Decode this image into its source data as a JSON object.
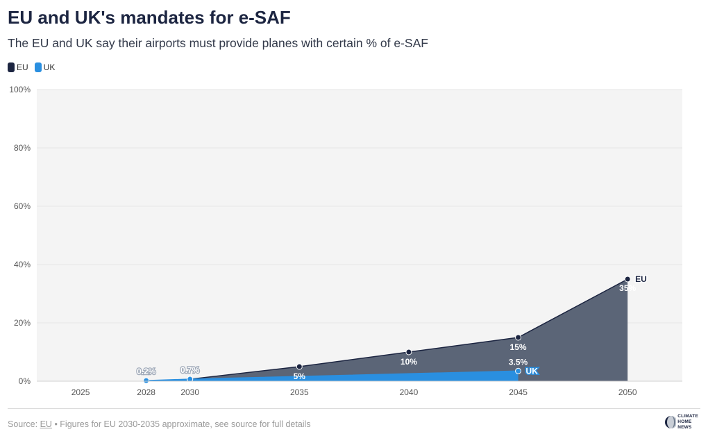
{
  "title": "EU and UK's mandates for e-SAF",
  "subtitle": "The EU and UK say their airports must provide planes with certain % of e-SAF",
  "legend": [
    {
      "label": "EU",
      "color": "#1c2541"
    },
    {
      "label": "UK",
      "color": "#2a8fe0"
    }
  ],
  "chart_data": {
    "type": "area",
    "title": "EU and UK's mandates for e-SAF",
    "x_ticks": [
      2025,
      2028,
      2030,
      2035,
      2040,
      2045,
      2050
    ],
    "xlim": [
      2023,
      2052.5
    ],
    "y_ticks": [
      "0%",
      "20%",
      "40%",
      "60%",
      "80%",
      "100%"
    ],
    "ylim": [
      0,
      100
    ],
    "grid": true,
    "series": [
      {
        "name": "EU",
        "color": "#1c2541",
        "fill": "#5b6577",
        "x": [
          2030,
          2035,
          2040,
          2045,
          2050
        ],
        "y": [
          0.7,
          5,
          10,
          15,
          35
        ],
        "labels": [
          "0.7%",
          "5%",
          "10%",
          "15%",
          "35%"
        ]
      },
      {
        "name": "UK",
        "color": "#2a8fe0",
        "fill": "#2a8fe0",
        "x": [
          2028,
          2030,
          2045
        ],
        "y": [
          0.2,
          0.7,
          3.5
        ],
        "labels": [
          "0.2%",
          "",
          "3.5%"
        ]
      }
    ]
  },
  "footer": {
    "source_prefix": "Source:",
    "source_link": "EU",
    "note": "• Figures for EU 2030-2035 approximate, see source for full details"
  },
  "logo": {
    "line1": "CLIMATE",
    "line2": "HOME",
    "line3": "NEWS"
  }
}
